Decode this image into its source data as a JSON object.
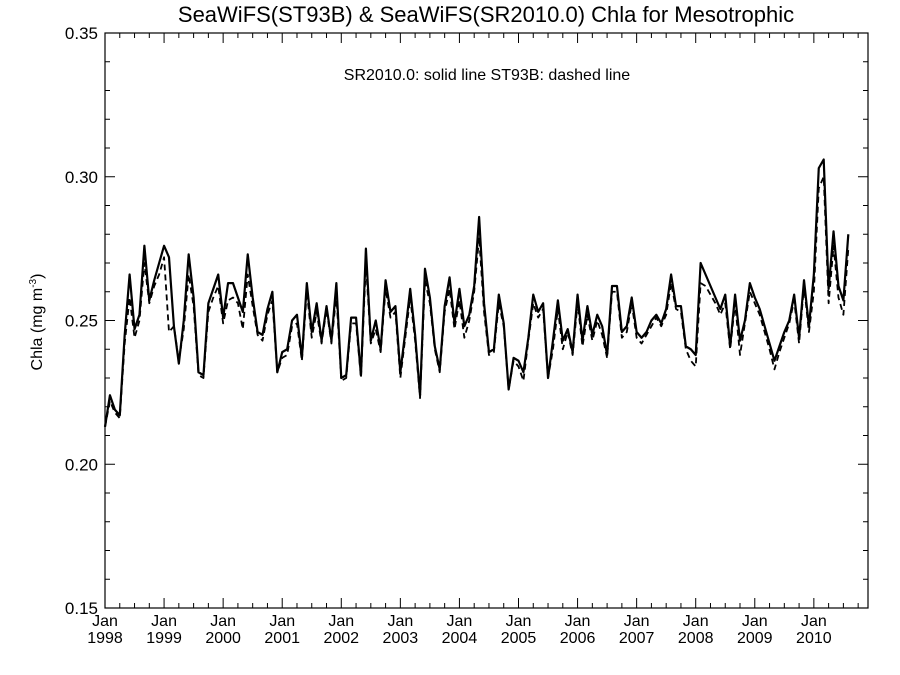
{
  "chart_data": {
    "type": "line",
    "title": "SeaWiFS(ST93B) & SeaWiFS(SR2010.0)  Chla for Mesotrophic",
    "annotation": "SR2010.0: solid line   ST93B: dashed line",
    "ylabel": "Chla (mg m",
    "ylabel_sup": "-3",
    "ylabel_close": ")",
    "ylim": [
      0.15,
      0.35
    ],
    "yticks": [
      "0.15",
      "0.20",
      "0.25",
      "0.30",
      "0.35"
    ],
    "ytick_values": [
      0.15,
      0.2,
      0.25,
      0.3,
      0.35
    ],
    "x_start": "1998-01",
    "xlim_months": [
      0,
      155
    ],
    "xtick_month": "Jan",
    "xticks": [
      {
        "month": 0,
        "year": "1998"
      },
      {
        "month": 12,
        "year": "1999"
      },
      {
        "month": 24,
        "year": "2000"
      },
      {
        "month": 36,
        "year": "2001"
      },
      {
        "month": 48,
        "year": "2002"
      },
      {
        "month": 60,
        "year": "2003"
      },
      {
        "month": 72,
        "year": "2004"
      },
      {
        "month": 84,
        "year": "2005"
      },
      {
        "month": 96,
        "year": "2006"
      },
      {
        "month": 108,
        "year": "2007"
      },
      {
        "month": 120,
        "year": "2008"
      },
      {
        "month": 132,
        "year": "2009"
      },
      {
        "month": 144,
        "year": "2010"
      }
    ],
    "series": [
      {
        "name": "SR2010.0",
        "style": "solid",
        "color": "#000000",
        "values": [
          0.213,
          0.224,
          0.219,
          0.217,
          0.245,
          0.266,
          0.247,
          0.252,
          0.276,
          0.257,
          0.264,
          0.27,
          0.276,
          0.272,
          0.248,
          0.235,
          0.25,
          0.273,
          0.258,
          0.232,
          0.231,
          0.256,
          0.261,
          0.266,
          0.251,
          0.263,
          0.263,
          0.258,
          0.253,
          0.273,
          0.258,
          0.246,
          0.245,
          0.254,
          0.26,
          0.232,
          0.239,
          0.24,
          0.25,
          0.252,
          0.237,
          0.263,
          0.246,
          0.256,
          0.243,
          0.255,
          0.243,
          0.263,
          0.23,
          0.231,
          0.251,
          0.251,
          0.231,
          0.275,
          0.243,
          0.25,
          0.24,
          0.264,
          0.253,
          0.255,
          0.232,
          0.246,
          0.261,
          0.245,
          0.224,
          0.268,
          0.258,
          0.241,
          0.233,
          0.255,
          0.265,
          0.249,
          0.261,
          0.248,
          0.252,
          0.262,
          0.286,
          0.256,
          0.239,
          0.24,
          0.259,
          0.249,
          0.226,
          0.237,
          0.236,
          0.232,
          0.244,
          0.259,
          0.253,
          0.256,
          0.23,
          0.243,
          0.257,
          0.243,
          0.247,
          0.239,
          0.259,
          0.243,
          0.255,
          0.245,
          0.252,
          0.248,
          0.238,
          0.262,
          0.262,
          0.246,
          0.248,
          0.258,
          0.246,
          0.244,
          0.246,
          0.25,
          0.252,
          0.249,
          0.254,
          0.266,
          0.255,
          0.255,
          0.241,
          0.24,
          0.238,
          0.27,
          0.266,
          0.262,
          0.258,
          0.254,
          0.259,
          0.241,
          0.259,
          0.243,
          0.25,
          0.263,
          0.258,
          0.254,
          0.248,
          0.242,
          0.236,
          0.241,
          0.246,
          0.25,
          0.259,
          0.244,
          0.264,
          0.248,
          0.266,
          0.303,
          0.306,
          0.261,
          0.281,
          0.262,
          0.257,
          0.28
        ]
      },
      {
        "name": "ST93B",
        "style": "dashed",
        "color": "#000000",
        "values": [
          0.213,
          0.222,
          0.218,
          0.216,
          0.242,
          0.258,
          0.244,
          0.25,
          0.27,
          0.256,
          0.262,
          0.266,
          0.272,
          0.246,
          0.248,
          0.236,
          0.247,
          0.266,
          0.255,
          0.231,
          0.23,
          0.253,
          0.258,
          0.262,
          0.249,
          0.257,
          0.258,
          0.256,
          0.247,
          0.266,
          0.255,
          0.245,
          0.243,
          0.252,
          0.257,
          0.232,
          0.237,
          0.238,
          0.248,
          0.249,
          0.236,
          0.26,
          0.244,
          0.253,
          0.242,
          0.254,
          0.242,
          0.259,
          0.229,
          0.23,
          0.249,
          0.249,
          0.23,
          0.27,
          0.242,
          0.247,
          0.239,
          0.261,
          0.251,
          0.253,
          0.23,
          0.244,
          0.258,
          0.243,
          0.223,
          0.264,
          0.256,
          0.24,
          0.232,
          0.253,
          0.261,
          0.247,
          0.257,
          0.244,
          0.25,
          0.26,
          0.279,
          0.253,
          0.238,
          0.239,
          0.256,
          0.248,
          0.226,
          0.236,
          0.234,
          0.229,
          0.243,
          0.256,
          0.251,
          0.254,
          0.23,
          0.24,
          0.254,
          0.24,
          0.246,
          0.238,
          0.256,
          0.241,
          0.252,
          0.243,
          0.25,
          0.245,
          0.237,
          0.26,
          0.26,
          0.244,
          0.246,
          0.256,
          0.244,
          0.242,
          0.245,
          0.248,
          0.251,
          0.248,
          0.252,
          0.263,
          0.254,
          0.253,
          0.24,
          0.236,
          0.234,
          0.263,
          0.262,
          0.259,
          0.256,
          0.252,
          0.256,
          0.24,
          0.256,
          0.238,
          0.249,
          0.26,
          0.256,
          0.252,
          0.246,
          0.24,
          0.233,
          0.239,
          0.244,
          0.249,
          0.257,
          0.242,
          0.262,
          0.246,
          0.26,
          0.296,
          0.3,
          0.256,
          0.276,
          0.258,
          0.252,
          0.275
        ]
      }
    ]
  }
}
